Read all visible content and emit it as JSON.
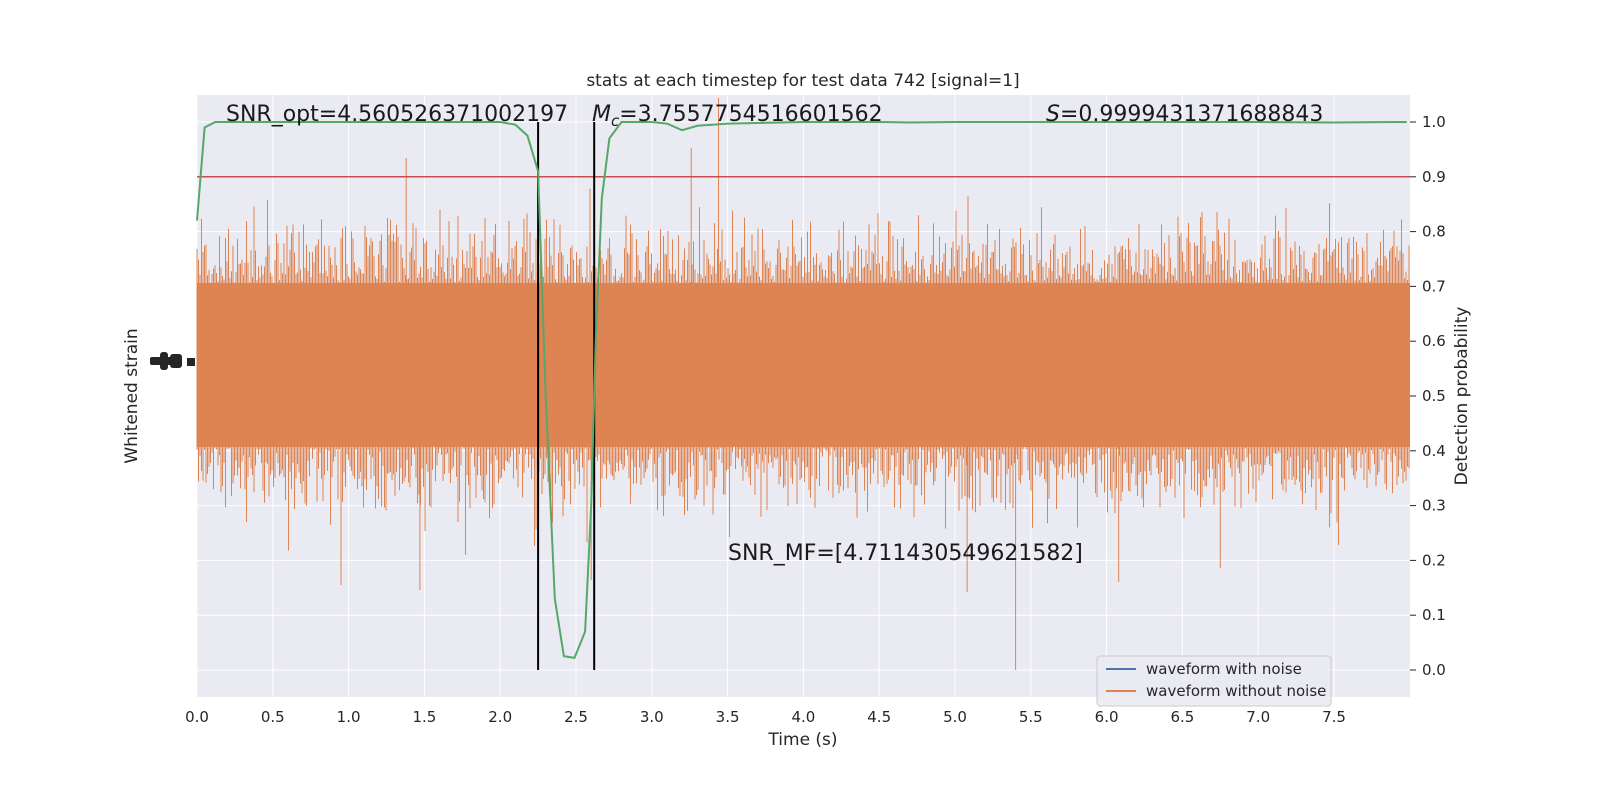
{
  "chart_data": {
    "type": "line",
    "title": "stats at each timestep for test data 742 [signal=1]",
    "xlabel": "Time (s)",
    "ylabel_left": "Whitened strain",
    "ylabel_right": "Detection probability",
    "xlim": [
      0,
      8
    ],
    "ylim_right": [
      -0.05,
      1.05
    ],
    "x_ticks": [
      "0.0",
      "0.5",
      "1.0",
      "1.5",
      "2.0",
      "2.5",
      "3.0",
      "3.5",
      "4.0",
      "4.5",
      "5.0",
      "5.5",
      "6.0",
      "6.5",
      "7.0",
      "7.5"
    ],
    "y_ticks_right": [
      "0.0",
      "0.1",
      "0.2",
      "0.3",
      "0.4",
      "0.5",
      "0.6",
      "0.7",
      "0.8",
      "0.9",
      "1.0"
    ],
    "threshold": 0.9,
    "vlines": [
      2.25,
      2.62
    ],
    "annotations": {
      "snr_opt": "SNR_opt=4.560526371002197",
      "mc_sym": "M",
      "mc_sub": "c",
      "mc_val": "=3.7557754516601562",
      "s_sym": "S",
      "s_val": "=0.9999431371688843",
      "snr_mf": "SNR_MF=[4.711430549621582]"
    },
    "legend": {
      "placement": "lower-right",
      "entries": [
        {
          "label": "waveform with noise",
          "color": "#4c72b0"
        },
        {
          "label": "waveform without noise",
          "color": "#dd8452"
        }
      ]
    },
    "series": [
      {
        "name": "detection probability",
        "color": "#55a868",
        "x": [
          0.0,
          0.05,
          0.12,
          0.2,
          0.5,
          1.0,
          1.5,
          2.0,
          2.1,
          2.18,
          2.25,
          2.3,
          2.36,
          2.42,
          2.49,
          2.56,
          2.6,
          2.63,
          2.67,
          2.72,
          2.8,
          3.0,
          3.1,
          3.2,
          3.3,
          3.4,
          3.5,
          4.0,
          4.5,
          4.7,
          5.0,
          6.0,
          7.0,
          7.5,
          7.98
        ],
        "y": [
          0.82,
          0.99,
          1.0,
          1.0,
          1.0,
          1.0,
          1.0,
          1.0,
          0.995,
          0.975,
          0.91,
          0.5,
          0.13,
          0.025,
          0.022,
          0.07,
          0.3,
          0.6,
          0.86,
          0.97,
          1.0,
          1.0,
          0.997,
          0.985,
          0.993,
          0.995,
          0.997,
          1.0,
          1.0,
          0.999,
          1.0,
          1.0,
          1.0,
          0.999,
          1.0
        ]
      }
    ],
    "colors": {
      "threshold": "#c44e52",
      "vline": "#000000",
      "background": "#eaeaf2",
      "grid": "#ffffff",
      "noise": "#dd8452"
    }
  }
}
